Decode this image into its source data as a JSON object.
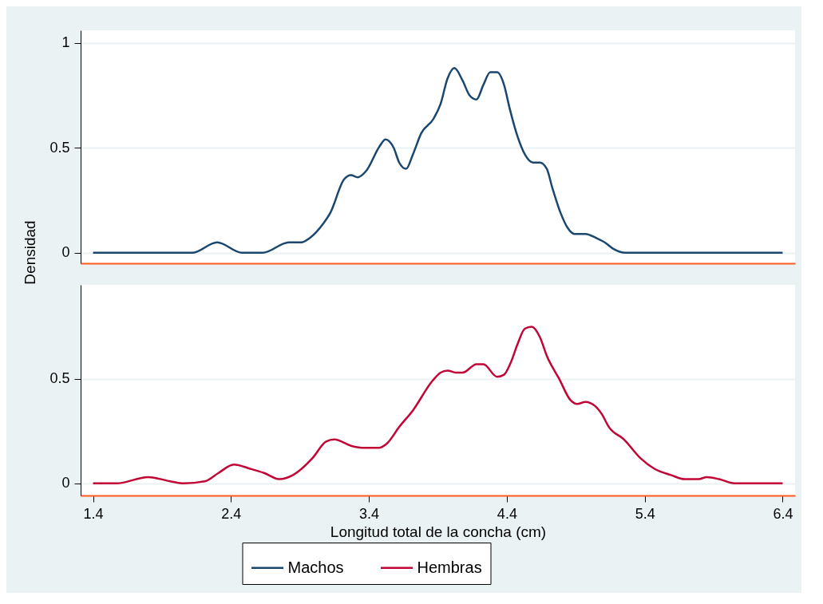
{
  "chart_data": [
    {
      "type": "line",
      "ylabel": "Densidad",
      "xlim": [
        1.31,
        6.49
      ],
      "xticks": [
        1.4,
        2.4,
        3.4,
        4.4,
        5.4,
        6.4
      ],
      "ylim": [
        -0.05,
        1.06
      ],
      "yticks": [
        0,
        0.5,
        1
      ],
      "grid": "y",
      "legend": "bottom",
      "tick_labels": "y",
      "series": [
        {
          "name": "Machos",
          "color": "#1a476f",
          "x": [
            1.4,
            2.12,
            2.3,
            2.48,
            2.63,
            2.82,
            2.91,
            2.97,
            3.07,
            3.12,
            3.22,
            3.27,
            3.32,
            3.38,
            3.48,
            3.52,
            3.58,
            3.62,
            3.67,
            3.72,
            3.78,
            3.87,
            3.92,
            3.97,
            4.02,
            4.08,
            4.13,
            4.18,
            4.23,
            4.28,
            4.33,
            4.38,
            4.42,
            4.48,
            4.53,
            4.59,
            4.64,
            4.69,
            4.73,
            4.79,
            4.84,
            4.89,
            4.97,
            5.05,
            5.11,
            5.17,
            5.26,
            6.4
          ],
          "values": [
            0,
            0,
            0.05,
            0,
            0,
            0.05,
            0.05,
            0.07,
            0.14,
            0.19,
            0.35,
            0.37,
            0.36,
            0.39,
            0.51,
            0.54,
            0.5,
            0.43,
            0.4,
            0.47,
            0.57,
            0.64,
            0.71,
            0.83,
            0.88,
            0.82,
            0.75,
            0.73,
            0.8,
            0.86,
            0.86,
            0.8,
            0.69,
            0.55,
            0.47,
            0.43,
            0.43,
            0.4,
            0.31,
            0.19,
            0.12,
            0.09,
            0.09,
            0.07,
            0.05,
            0.02,
            0,
            0
          ]
        }
      ]
    },
    {
      "type": "line",
      "xlabel": "Longitud total de la concha (cm)",
      "xlim": [
        1.31,
        6.49
      ],
      "xticks": [
        1.4,
        2.4,
        3.4,
        4.4,
        5.4,
        6.4
      ],
      "ylim": [
        -0.058,
        0.95
      ],
      "yticks": [
        0,
        0.5
      ],
      "grid": "y",
      "legend": "bottom",
      "series": [
        {
          "name": "Hembras",
          "color": "#c10534",
          "x": [
            1.4,
            1.57,
            1.8,
            1.96,
            2.06,
            2.21,
            2.31,
            2.42,
            2.54,
            2.64,
            2.75,
            2.85,
            2.99,
            3.09,
            3.15,
            3.27,
            3.37,
            3.47,
            3.53,
            3.62,
            3.72,
            3.86,
            3.92,
            3.97,
            4.03,
            4.08,
            4.18,
            4.23,
            4.33,
            4.38,
            4.43,
            4.48,
            4.53,
            4.58,
            4.64,
            4.69,
            4.78,
            4.86,
            4.91,
            4.97,
            5.04,
            5.09,
            5.14,
            5.25,
            5.37,
            5.47,
            5.59,
            5.69,
            5.79,
            5.85,
            5.94,
            6.05,
            6.4
          ],
          "values": [
            0,
            0,
            0.03,
            0.01,
            0,
            0.01,
            0.05,
            0.09,
            0.07,
            0.05,
            0.02,
            0.04,
            0.12,
            0.2,
            0.21,
            0.18,
            0.17,
            0.17,
            0.19,
            0.27,
            0.35,
            0.49,
            0.53,
            0.54,
            0.53,
            0.53,
            0.57,
            0.57,
            0.51,
            0.52,
            0.58,
            0.67,
            0.74,
            0.75,
            0.7,
            0.61,
            0.5,
            0.4,
            0.38,
            0.39,
            0.37,
            0.33,
            0.27,
            0.21,
            0.12,
            0.07,
            0.04,
            0.02,
            0.02,
            0.03,
            0.02,
            0,
            0
          ]
        }
      ]
    }
  ]
}
